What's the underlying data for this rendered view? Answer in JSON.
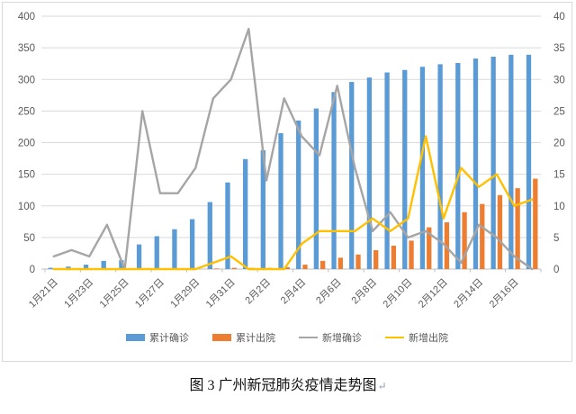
{
  "figure": {
    "caption": "图 3 广州新冠肺炎疫情走势图",
    "paragraph_mark": "↵"
  },
  "chart_data": {
    "type": "bar",
    "subtype": "clustered bars + two lines, dual y-axis",
    "categories": [
      "1月21日",
      "1月22日",
      "1月23日",
      "1月24日",
      "1月25日",
      "1月26日",
      "1月27日",
      "1月28日",
      "1月29日",
      "1月30日",
      "1月31日",
      "2月1日",
      "2月2日",
      "2月3日",
      "2月4日",
      "2月5日",
      "2月6日",
      "2月7日",
      "2月8日",
      "2月9日",
      "2月10日",
      "2月11日",
      "2月12日",
      "2月13日",
      "2月14日",
      "2月15日",
      "2月16日",
      "2月17日"
    ],
    "x_tick_labels_shown": [
      "1月21日",
      "1月23日",
      "1月25日",
      "1月27日",
      "1月29日",
      "1月31日",
      "2月2日",
      "2月4日",
      "2月6日",
      "2月8日",
      "2月10日",
      "2月12日",
      "2月14日",
      "2月16日"
    ],
    "series": [
      {
        "name": "累计确诊",
        "type": "bar",
        "axis": "left",
        "color": "#5B9BD5",
        "values": [
          2,
          4,
          7,
          13,
          14,
          39,
          52,
          63,
          79,
          106,
          137,
          174,
          188,
          215,
          235,
          254,
          280,
          296,
          303,
          311,
          315,
          320,
          324,
          326,
          333,
          336,
          339,
          339
        ]
      },
      {
        "name": "累计出院",
        "type": "bar",
        "axis": "left",
        "color": "#ED7D31",
        "values": [
          0,
          0,
          0,
          0,
          0,
          0,
          0,
          0,
          0,
          1,
          2,
          2,
          2,
          3,
          7,
          13,
          18,
          23,
          30,
          37,
          45,
          66,
          74,
          90,
          103,
          117,
          128,
          143
        ]
      },
      {
        "name": "新增确诊",
        "type": "line",
        "axis": "right",
        "color": "#A5A5A5",
        "values": [
          2,
          3,
          2,
          7,
          0,
          25,
          12,
          12,
          16,
          27,
          30,
          38,
          14,
          27,
          21,
          18,
          29,
          16,
          6,
          9,
          5,
          6,
          4,
          1,
          7,
          5,
          2,
          0
        ]
      },
      {
        "name": "新增出院",
        "type": "line",
        "axis": "right",
        "color": "#FFC000",
        "values": [
          0,
          0,
          0,
          0,
          0,
          0,
          0,
          0,
          0,
          1,
          2,
          0,
          0,
          0,
          4,
          6,
          6,
          6,
          8,
          6,
          8,
          21,
          8,
          16,
          13,
          15,
          10,
          11
        ]
      }
    ],
    "left_axis": {
      "min": 0,
      "max": 400,
      "step": 50,
      "ticks": [
        "0",
        "50",
        "100",
        "150",
        "200",
        "250",
        "300",
        "350",
        "400"
      ]
    },
    "right_axis": {
      "min": 0,
      "max": 40,
      "step": 5,
      "ticks": [
        "0",
        "5",
        "10",
        "15",
        "20",
        "25",
        "30",
        "35",
        "40"
      ]
    },
    "legend_position": "bottom",
    "grid": true,
    "colors": {
      "gridline": "#D9D9D9",
      "axis_line": "#BFBFBF",
      "tick_text": "#595959"
    }
  }
}
